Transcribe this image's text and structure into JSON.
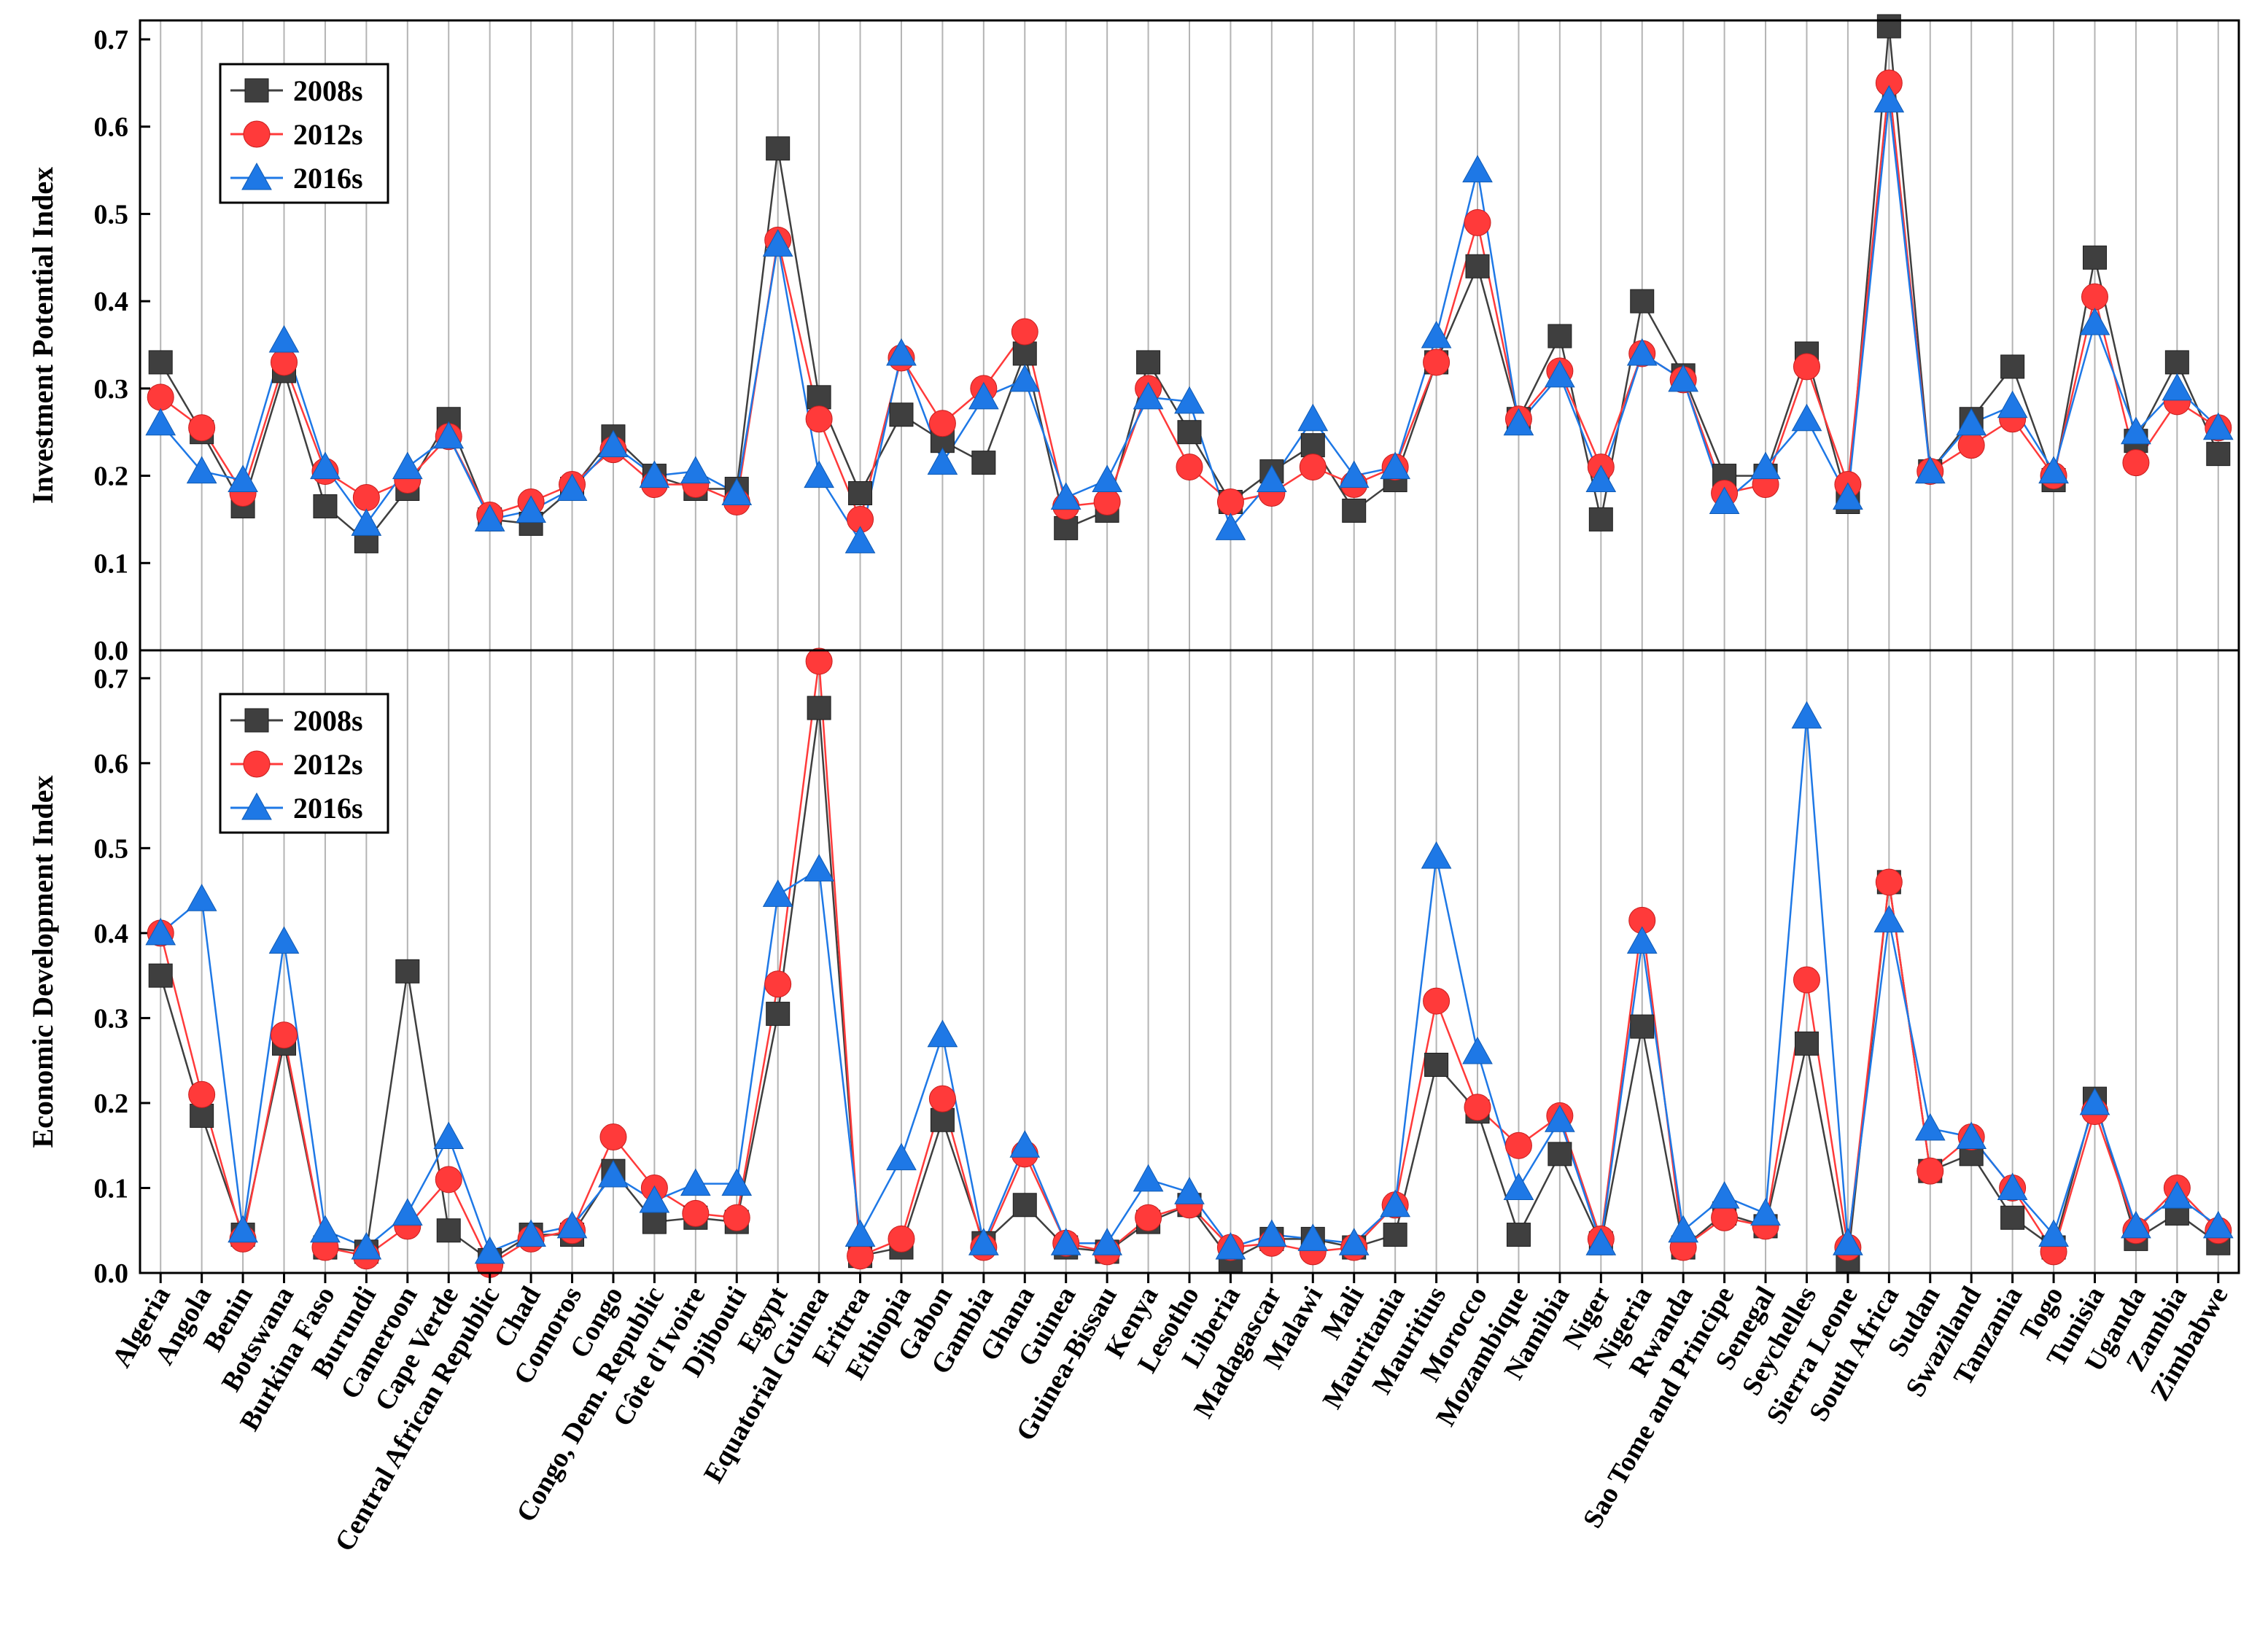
{
  "chart_data": {
    "type": "line",
    "categories": [
      "Algeria",
      "Angola",
      "Benin",
      "Botswana",
      "Burkina Faso",
      "Burundi",
      "Cameroon",
      "Cape Verde",
      "Central African Republic",
      "Chad",
      "Comoros",
      "Congo",
      "Congo, Dem. Republic",
      "Côte d'Ivoire",
      "Djibouti",
      "Egypt",
      "Equatorial Guinea",
      "Eritrea",
      "Ethiopia",
      "Gabon",
      "Gambia",
      "Ghana",
      "Guinea",
      "Guinea-Bissau",
      "Kenya",
      "Lesotho",
      "Liberia",
      "Madagascar",
      "Malawi",
      "Mali",
      "Mauritania",
      "Mauritius",
      "Morocco",
      "Mozambique",
      "Namibia",
      "Niger",
      "Nigeria",
      "Rwanda",
      "Sao Tome and Principe",
      "Senegal",
      "Seychelles",
      "Sierra Leone",
      "South Africa",
      "Sudan",
      "Swaziland",
      "Tanzania",
      "Togo",
      "Tunisia",
      "Uganda",
      "Zambia",
      "Zimbabwe"
    ],
    "colors": {
      "2008s": "#3f3f3f",
      "2012s": "#ff3a3a",
      "2016s": "#1e78e6",
      "grid": "#b4b4b4"
    },
    "panels": [
      {
        "ylabel": "Investment Potential Index",
        "ylim": [
          0,
          0.7
        ],
        "ticks": [
          "0.0",
          "0.1",
          "0.2",
          "0.3",
          "0.4",
          "0.5",
          "0.6",
          "0.7"
        ],
        "legend": {
          "position": "top-left",
          "entries": [
            "2008s",
            "2012s",
            "2016s"
          ]
        },
        "series": [
          {
            "name": "2008s",
            "marker": "square",
            "values": [
              0.33,
              0.25,
              0.165,
              0.32,
              0.165,
              0.125,
              0.185,
              0.265,
              0.15,
              0.145,
              0.185,
              0.245,
              0.2,
              0.185,
              0.185,
              0.575,
              0.29,
              0.18,
              0.27,
              0.24,
              0.215,
              0.34,
              0.14,
              0.16,
              0.33,
              0.25,
              0.17,
              0.205,
              0.235,
              0.16,
              0.195,
              0.33,
              0.44,
              0.265,
              0.36,
              0.15,
              0.4,
              0.315,
              0.2,
              0.2,
              0.34,
              0.17,
              0.715,
              0.205,
              0.265,
              0.325,
              0.195,
              0.45,
              0.24,
              0.33,
              0.225
            ]
          },
          {
            "name": "2012s",
            "marker": "circle",
            "values": [
              0.29,
              0.255,
              0.18,
              0.33,
              0.205,
              0.175,
              0.195,
              0.245,
              0.155,
              0.17,
              0.19,
              0.23,
              0.19,
              0.19,
              0.17,
              0.47,
              0.265,
              0.15,
              0.335,
              0.26,
              0.3,
              0.365,
              0.165,
              0.17,
              0.3,
              0.21,
              0.17,
              0.18,
              0.21,
              0.19,
              0.21,
              0.33,
              0.49,
              0.265,
              0.32,
              0.21,
              0.34,
              0.31,
              0.18,
              0.19,
              0.325,
              0.19,
              0.65,
              0.205,
              0.235,
              0.265,
              0.2,
              0.405,
              0.215,
              0.285,
              0.255
            ]
          },
          {
            "name": "2016s",
            "marker": "triangle",
            "values": [
              0.26,
              0.205,
              0.195,
              0.355,
              0.21,
              0.145,
              0.21,
              0.245,
              0.15,
              0.16,
              0.185,
              0.235,
              0.2,
              0.205,
              0.18,
              0.465,
              0.2,
              0.125,
              0.34,
              0.215,
              0.29,
              0.31,
              0.175,
              0.195,
              0.29,
              0.285,
              0.14,
              0.195,
              0.265,
              0.2,
              0.21,
              0.36,
              0.55,
              0.26,
              0.315,
              0.195,
              0.34,
              0.31,
              0.17,
              0.21,
              0.265,
              0.175,
              0.63,
              0.205,
              0.26,
              0.28,
              0.205,
              0.375,
              0.25,
              0.3,
              0.255
            ]
          }
        ]
      },
      {
        "ylabel": "Economic Development Index",
        "ylim": [
          0,
          0.75
        ],
        "ticks": [
          "0.0",
          "0.1",
          "0.2",
          "0.3",
          "0.4",
          "0.5",
          "0.6",
          "0.7"
        ],
        "legend": {
          "position": "top-left",
          "entries": [
            "2008s",
            "2012s",
            "2016s"
          ]
        },
        "series": [
          {
            "name": "2008s",
            "marker": "square",
            "values": [
              0.35,
              0.185,
              0.045,
              0.27,
              0.03,
              0.025,
              0.355,
              0.05,
              0.015,
              0.045,
              0.045,
              0.12,
              0.06,
              0.065,
              0.06,
              0.305,
              0.665,
              0.02,
              0.03,
              0.18,
              0.035,
              0.08,
              0.03,
              0.025,
              0.06,
              0.08,
              0.015,
              0.04,
              0.04,
              0.03,
              0.045,
              0.245,
              0.19,
              0.045,
              0.14,
              0.035,
              0.29,
              0.03,
              0.07,
              0.055,
              0.27,
              0.015,
              0.46,
              0.12,
              0.14,
              0.065,
              0.03,
              0.205,
              0.04,
              0.07,
              0.035
            ]
          },
          {
            "name": "2012s",
            "marker": "circle",
            "values": [
              0.4,
              0.21,
              0.04,
              0.28,
              0.03,
              0.02,
              0.055,
              0.11,
              0.01,
              0.04,
              0.05,
              0.16,
              0.1,
              0.07,
              0.065,
              0.34,
              0.72,
              0.02,
              0.04,
              0.205,
              0.03,
              0.14,
              0.035,
              0.025,
              0.065,
              0.08,
              0.03,
              0.035,
              0.025,
              0.03,
              0.08,
              0.32,
              0.195,
              0.15,
              0.185,
              0.04,
              0.415,
              0.03,
              0.065,
              0.055,
              0.345,
              0.03,
              0.46,
              0.12,
              0.16,
              0.1,
              0.025,
              0.19,
              0.05,
              0.1,
              0.05
            ]
          },
          {
            "name": "2016s",
            "marker": "triangle",
            "values": [
              0.4,
              0.44,
              0.05,
              0.39,
              0.05,
              0.03,
              0.07,
              0.16,
              0.025,
              0.045,
              0.055,
              0.115,
              0.085,
              0.105,
              0.105,
              0.445,
              0.475,
              0.045,
              0.135,
              0.28,
              0.035,
              0.15,
              0.035,
              0.035,
              0.11,
              0.095,
              0.03,
              0.045,
              0.04,
              0.035,
              0.08,
              0.49,
              0.26,
              0.1,
              0.18,
              0.035,
              0.39,
              0.05,
              0.09,
              0.07,
              0.655,
              0.035,
              0.415,
              0.17,
              0.16,
              0.1,
              0.045,
              0.2,
              0.055,
              0.09,
              0.055
            ]
          }
        ]
      }
    ]
  }
}
